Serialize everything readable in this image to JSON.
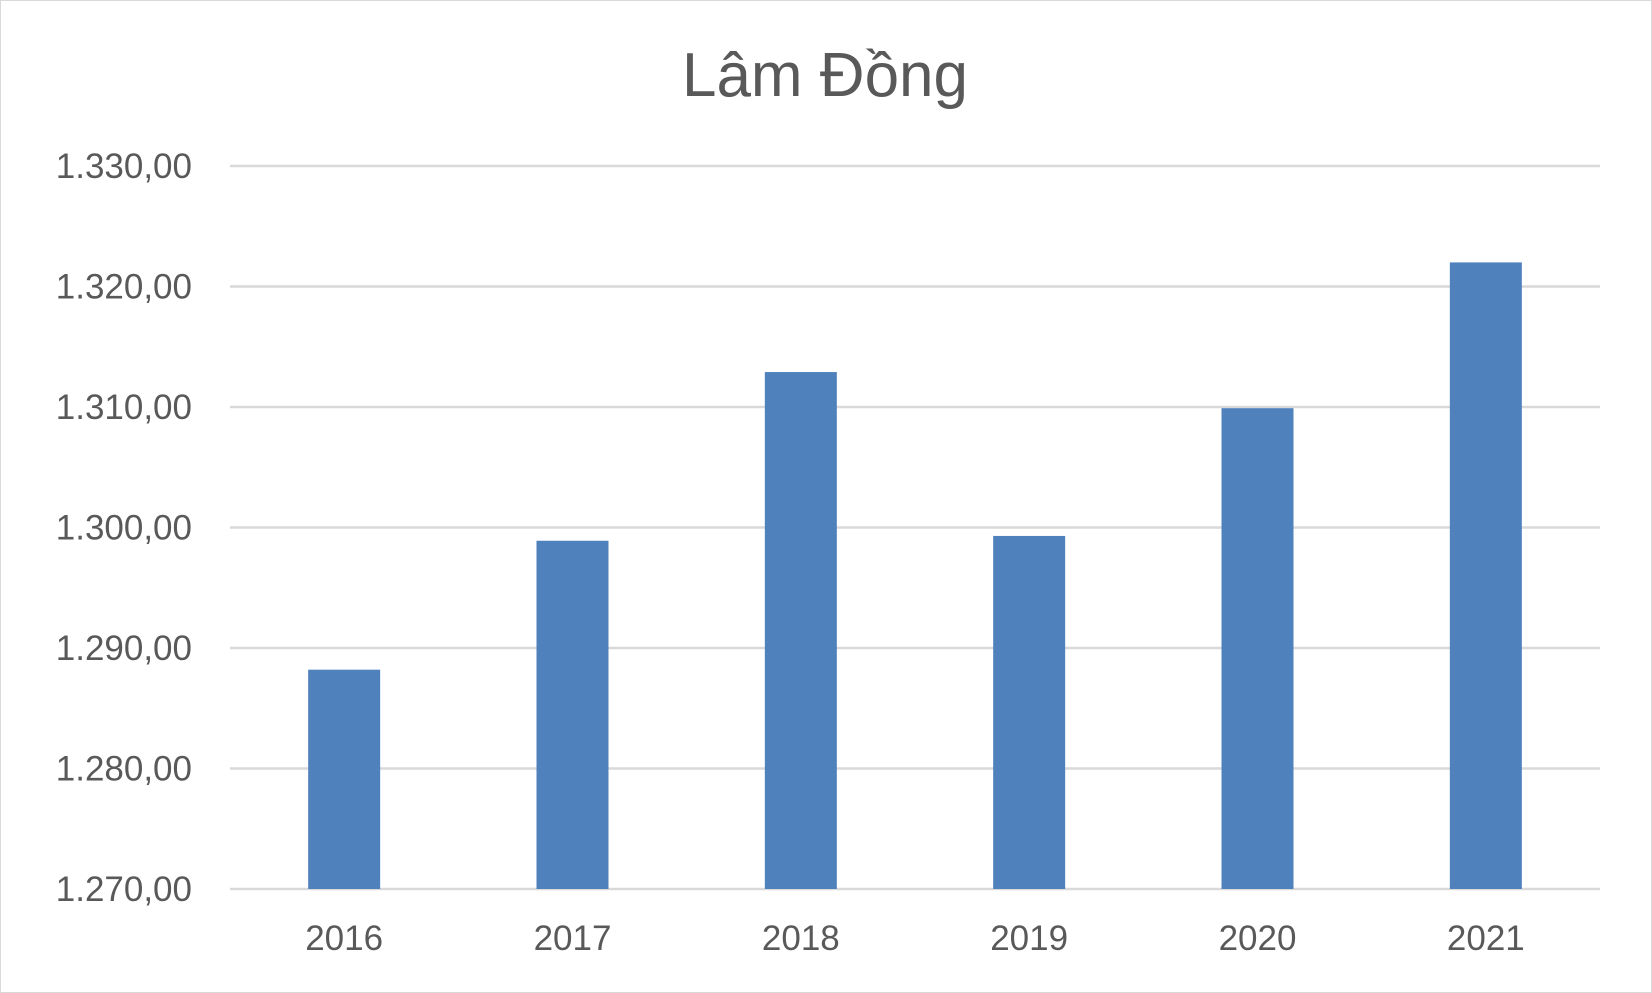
{
  "chart_data": {
    "type": "bar",
    "title": "Lâm Đồng",
    "xlabel": "",
    "ylabel": "",
    "categories": [
      "2016",
      "2017",
      "2018",
      "2019",
      "2020",
      "2021"
    ],
    "values": [
      1288.2,
      1298.9,
      1312.9,
      1299.3,
      1309.9,
      1322.0
    ],
    "ylim": [
      1270,
      1330
    ],
    "yticks": [
      1270,
      1280,
      1290,
      1300,
      1310,
      1320,
      1330
    ],
    "ytick_labels": [
      "1.270,00",
      "1.280,00",
      "1.290,00",
      "1.300,00",
      "1.310,00",
      "1.320,00",
      "1.330,00"
    ],
    "grid": true,
    "legend": "none",
    "bar_color": "#4f81bd",
    "grid_color": "#d9d9d9",
    "text_color": "#595959"
  }
}
